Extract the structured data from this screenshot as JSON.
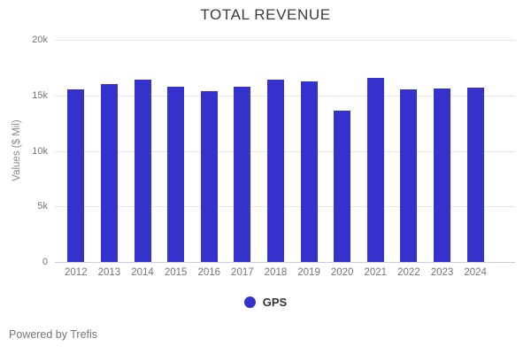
{
  "chart_data": {
    "type": "bar",
    "title": "TOTAL REVENUE",
    "xlabel": "",
    "ylabel": "Values ($ Mil)",
    "categories": [
      "2012",
      "2013",
      "2014",
      "2015",
      "2016",
      "2017",
      "2018",
      "2019",
      "2020",
      "2021",
      "2022",
      "2023",
      "2024"
    ],
    "series": [
      {
        "name": "GPS",
        "color": "#3431cd",
        "values": [
          15500,
          16000,
          16400,
          15750,
          15350,
          15800,
          16450,
          16250,
          13650,
          16550,
          15500,
          15650,
          15700
        ]
      }
    ],
    "ylim": [
      0,
      20000
    ],
    "yticks": [
      0,
      5000,
      10000,
      15000,
      20000
    ],
    "ytick_labels": [
      "0",
      "5k",
      "10k",
      "15k",
      "20k"
    ],
    "grid": true,
    "legend_position": "bottom"
  },
  "footer": {
    "powered_by": "Powered by Trefis"
  },
  "colors": {
    "background": "#ffffff",
    "bar": "#3431cd",
    "title_text": "#3c3c3c",
    "axis_text": "#757575",
    "gridline": "#e7e7e7",
    "baseline": "#c9d0dc",
    "legend_text": "#333333"
  }
}
